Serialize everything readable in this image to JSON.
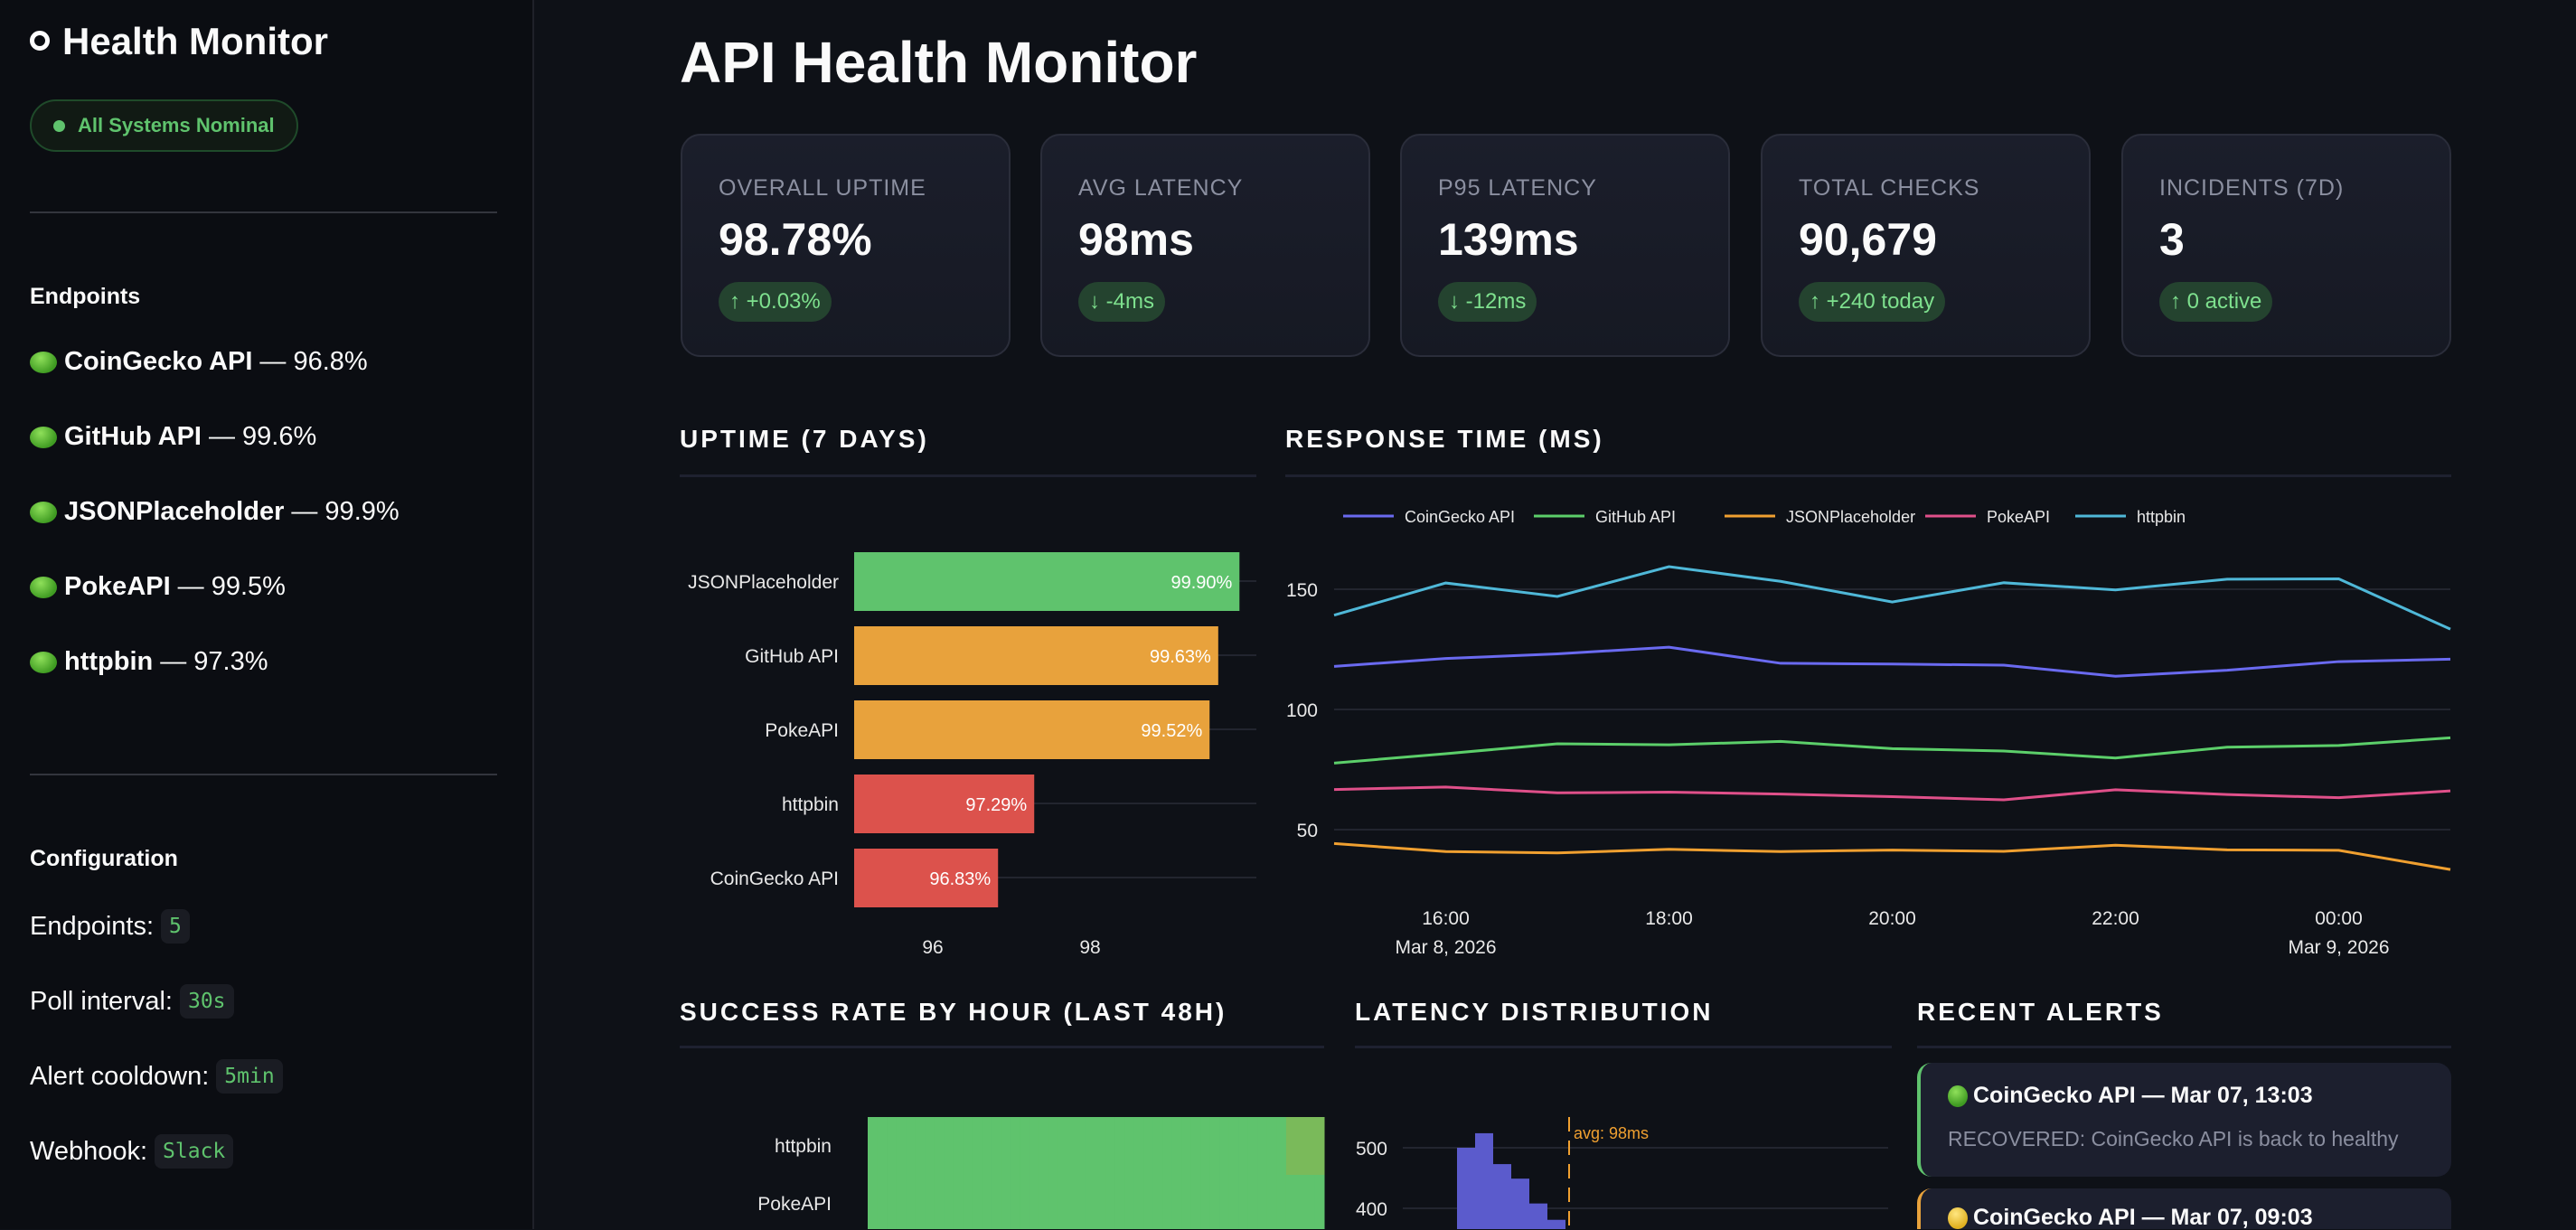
{
  "sidebar": {
    "title": "Health Monitor",
    "status_badge": "All Systems Nominal",
    "endpoints_heading": "Endpoints",
    "endpoints": [
      {
        "name": "CoinGecko API",
        "uptime": "— 96.8%",
        "status": "green"
      },
      {
        "name": "GitHub API",
        "uptime": "— 99.6%",
        "status": "green"
      },
      {
        "name": "JSONPlaceholder",
        "uptime": "— 99.9%",
        "status": "green"
      },
      {
        "name": "PokeAPI",
        "uptime": "— 99.5%",
        "status": "green"
      },
      {
        "name": "httpbin",
        "uptime": "— 97.3%",
        "status": "green"
      }
    ],
    "config_heading": "Configuration",
    "config": [
      {
        "label": "Endpoints:",
        "value": "5"
      },
      {
        "label": "Poll interval:",
        "value": "30s"
      },
      {
        "label": "Alert cooldown:",
        "value": "5min"
      },
      {
        "label": "Webhook:",
        "value": "Slack"
      }
    ]
  },
  "main": {
    "title": "API Health Monitor",
    "metrics": [
      {
        "label": "OVERALL UPTIME",
        "value": "98.78%",
        "delta": "↑ +0.03%"
      },
      {
        "label": "AVG LATENCY",
        "value": "98ms",
        "delta": "↓ -4ms"
      },
      {
        "label": "P95 LATENCY",
        "value": "139ms",
        "delta": "↓ -12ms"
      },
      {
        "label": "TOTAL CHECKS",
        "value": "90,679",
        "delta": "↑ +240 today"
      },
      {
        "label": "INCIDENTS (7D)",
        "value": "3",
        "delta": "↑ 0 active"
      }
    ],
    "sections": {
      "uptime": "UPTIME (7 DAYS)",
      "response": "RESPONSE TIME (MS)",
      "success": "SUCCESS RATE BY HOUR (LAST 48H)",
      "latency": "LATENCY DISTRIBUTION",
      "alerts": "RECENT ALERTS"
    },
    "alerts": [
      {
        "status": "green",
        "title": "CoinGecko API — Mar 07, 13:03",
        "message": "RECOVERED: CoinGecko API is back to healthy",
        "color": "#5fc36d"
      },
      {
        "status": "yellow",
        "title": "CoinGecko API — Mar 07, 09:03",
        "message": "",
        "color": "#e8a23c"
      }
    ]
  },
  "colors": {
    "good": "#5fc36d",
    "warn": "#e8a23c",
    "bad": "#dc524c",
    "accent": "#5b5bcc"
  },
  "chart_data": [
    {
      "type": "bar",
      "orientation": "horizontal",
      "categories": [
        "JSONPlaceholder",
        "GitHub API",
        "PokeAPI",
        "httpbin",
        "CoinGecko API"
      ],
      "values": [
        99.9,
        99.63,
        99.52,
        97.29,
        96.83
      ],
      "labels": [
        "99.90%",
        "99.63%",
        "99.52%",
        "97.29%",
        "96.83%"
      ],
      "colors": [
        "#5fc36d",
        "#e8a23c",
        "#e8a23c",
        "#dc524c",
        "#dc524c"
      ],
      "xlim": [
        95,
        100.3
      ],
      "xticks": [
        "96",
        "98"
      ],
      "grid": true
    },
    {
      "type": "line",
      "x": [
        "15:00",
        "16:00",
        "17:00",
        "18:00",
        "19:00",
        "20:00",
        "21:00",
        "22:00",
        "23:00",
        "00:00",
        "01:00"
      ],
      "xticks": [
        {
          "t": "16:00",
          "d": "Mar 8, 2026"
        },
        {
          "t": "18:00",
          "d": ""
        },
        {
          "t": "20:00",
          "d": ""
        },
        {
          "t": "22:00",
          "d": ""
        },
        {
          "t": "00:00",
          "d": "Mar 9, 2026"
        }
      ],
      "ylim": [
        28,
        172
      ],
      "yticks": [
        "50",
        "100",
        "150"
      ],
      "legend": "top-left",
      "grid": true,
      "series": [
        {
          "name": "CoinGecko API",
          "color": "#6a6af0",
          "values": [
            117.9,
            121.2,
            123.1,
            125.9,
            119.2,
            118.9,
            118.4,
            113.8,
            116.3,
            119.9,
            120.9
          ]
        },
        {
          "name": "GitHub API",
          "color": "#5ccf6a",
          "values": [
            77.7,
            81.6,
            85.7,
            85.3,
            86.7,
            83.7,
            82.7,
            79.8,
            84.3,
            85.0,
            88.2
          ]
        },
        {
          "name": "JSONPlaceholder",
          "color": "#f0a030",
          "values": [
            44.2,
            40.9,
            40.3,
            41.8,
            40.9,
            41.5,
            41.0,
            43.5,
            41.6,
            41.4,
            33.4
          ]
        },
        {
          "name": "PokeAPI",
          "color": "#e0508a",
          "values": [
            66.7,
            67.7,
            65.3,
            65.6,
            64.8,
            63.7,
            62.4,
            66.6,
            64.6,
            63.3,
            66.1
          ]
        },
        {
          "name": "httpbin",
          "color": "#4fb8d8",
          "values": [
            139.2,
            152.6,
            147.0,
            159.4,
            153.3,
            144.7,
            152.7,
            149.7,
            154.2,
            154.3,
            133.4
          ]
        }
      ]
    },
    {
      "type": "heatmap",
      "rows": [
        "httpbin",
        "PokeAPI"
      ],
      "values": [
        [
          100,
          100,
          100,
          100,
          100,
          100,
          100,
          100,
          100,
          100,
          100,
          100,
          100,
          100,
          100,
          100,
          100,
          100,
          100,
          100,
          100,
          100,
          100,
          100,
          100,
          100,
          100,
          100,
          100,
          100,
          100,
          100,
          100,
          100,
          100,
          100,
          100,
          100,
          100,
          100,
          100,
          100,
          100,
          100,
          98,
          98,
          98,
          98
        ],
        [
          100,
          100,
          100,
          100,
          100,
          100,
          100,
          100,
          100,
          100,
          100,
          100,
          100,
          100,
          100,
          100,
          100,
          100,
          100,
          100,
          100,
          100,
          100,
          100,
          100,
          100,
          100,
          100,
          100,
          100,
          100,
          100,
          100,
          100,
          100,
          100,
          100,
          100,
          100,
          100,
          100,
          100,
          100,
          100,
          100,
          100,
          100,
          100
        ]
      ]
    },
    {
      "type": "bar",
      "orientation": "vertical",
      "values": [
        500,
        524,
        473,
        449,
        408,
        381
      ],
      "yticks": [
        "400",
        "500"
      ],
      "ylim": [
        300,
        560
      ],
      "annotation": "avg: 98ms",
      "color": "#5b5bcc",
      "annotation_color": "#f0a030"
    }
  ]
}
